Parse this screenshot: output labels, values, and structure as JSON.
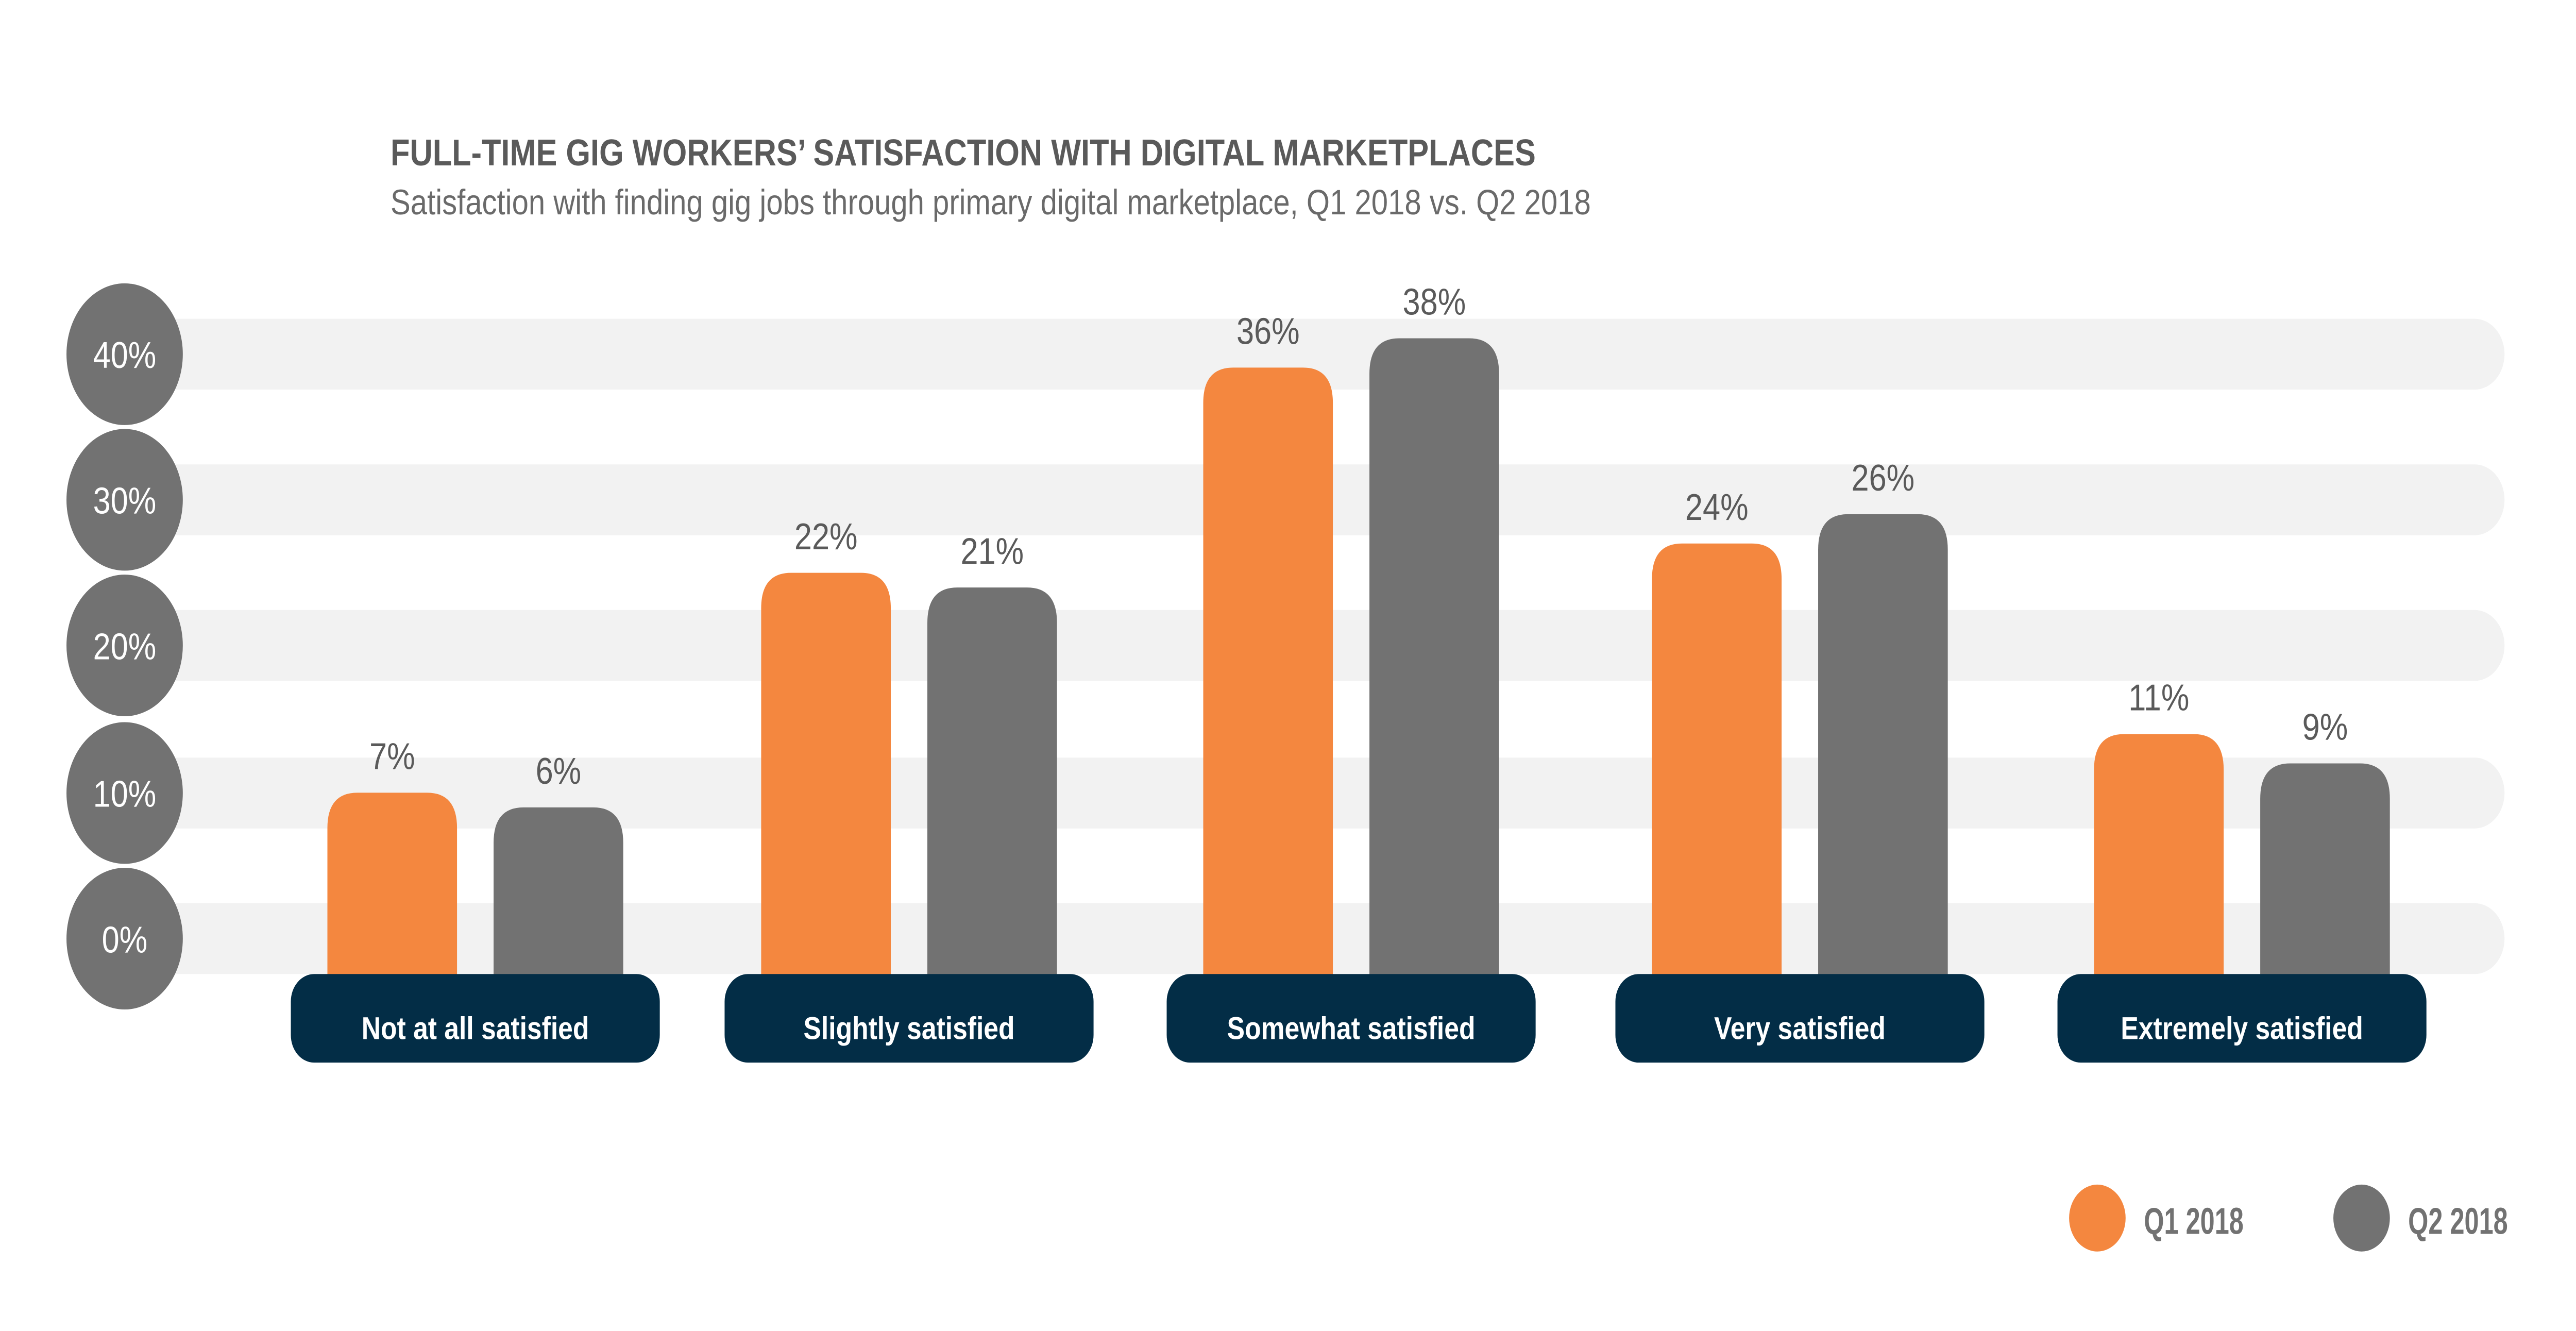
{
  "chart_data": {
    "type": "bar",
    "title": "FULL-TIME GIG WORKERS’ SATISFACTION WITH DIGITAL MARKETPLACES",
    "subtitle": "Satisfaction with finding gig jobs through primary digital marketplace, Q1 2018 vs. Q2 2018",
    "categories": [
      "Not at all satisfied",
      "Slightly satisfied",
      "Somewhat satisfied",
      "Very satisfied",
      "Extremely satisfied"
    ],
    "series": [
      {
        "name": "Q1 2018",
        "color": "#F4873F",
        "values": [
          7,
          22,
          36,
          24,
          11
        ],
        "labels": [
          "7%",
          "22%",
          "36%",
          "24%",
          "11%"
        ]
      },
      {
        "name": "Q2 2018",
        "color": "#727272",
        "values": [
          6,
          21,
          38,
          26,
          9
        ],
        "labels": [
          "6%",
          "21%",
          "38%",
          "26%",
          "9%"
        ]
      }
    ],
    "y_ticks": [
      "40%",
      "30%",
      "20%",
      "10%",
      "0%"
    ],
    "ylim": [
      0,
      40
    ],
    "grid": true,
    "legend_position": "bottom-right",
    "colors": {
      "category_pill": "#032D46",
      "grid_band": "#F2F2F2",
      "tick_circle": "#727272",
      "text": "#5A5A5A"
    }
  }
}
